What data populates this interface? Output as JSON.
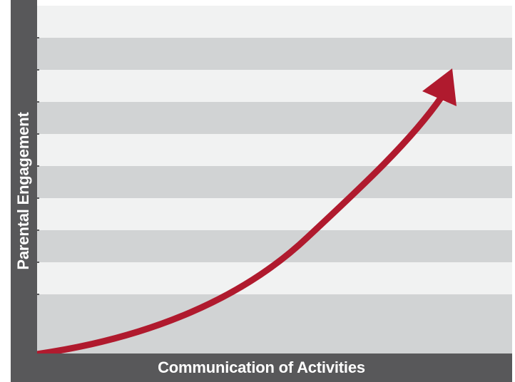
{
  "colors": {
    "axis_bar": "#58585a",
    "band_light": "#f1f2f2",
    "band_dark": "#d1d3d4",
    "arrow": "#b01a2e",
    "tick": "#58585a"
  },
  "axes": {
    "x_label": "Communication of Activities",
    "y_label": "Parental Engagement"
  },
  "background": {
    "band_count": 10,
    "pattern": "alternating light/dark horizontal bands, light band at top"
  },
  "curve": {
    "shape": "exponential growth",
    "direction": "from lower-left origin rising steeply to upper-right",
    "arrowhead": "at end, pointing upward"
  }
}
